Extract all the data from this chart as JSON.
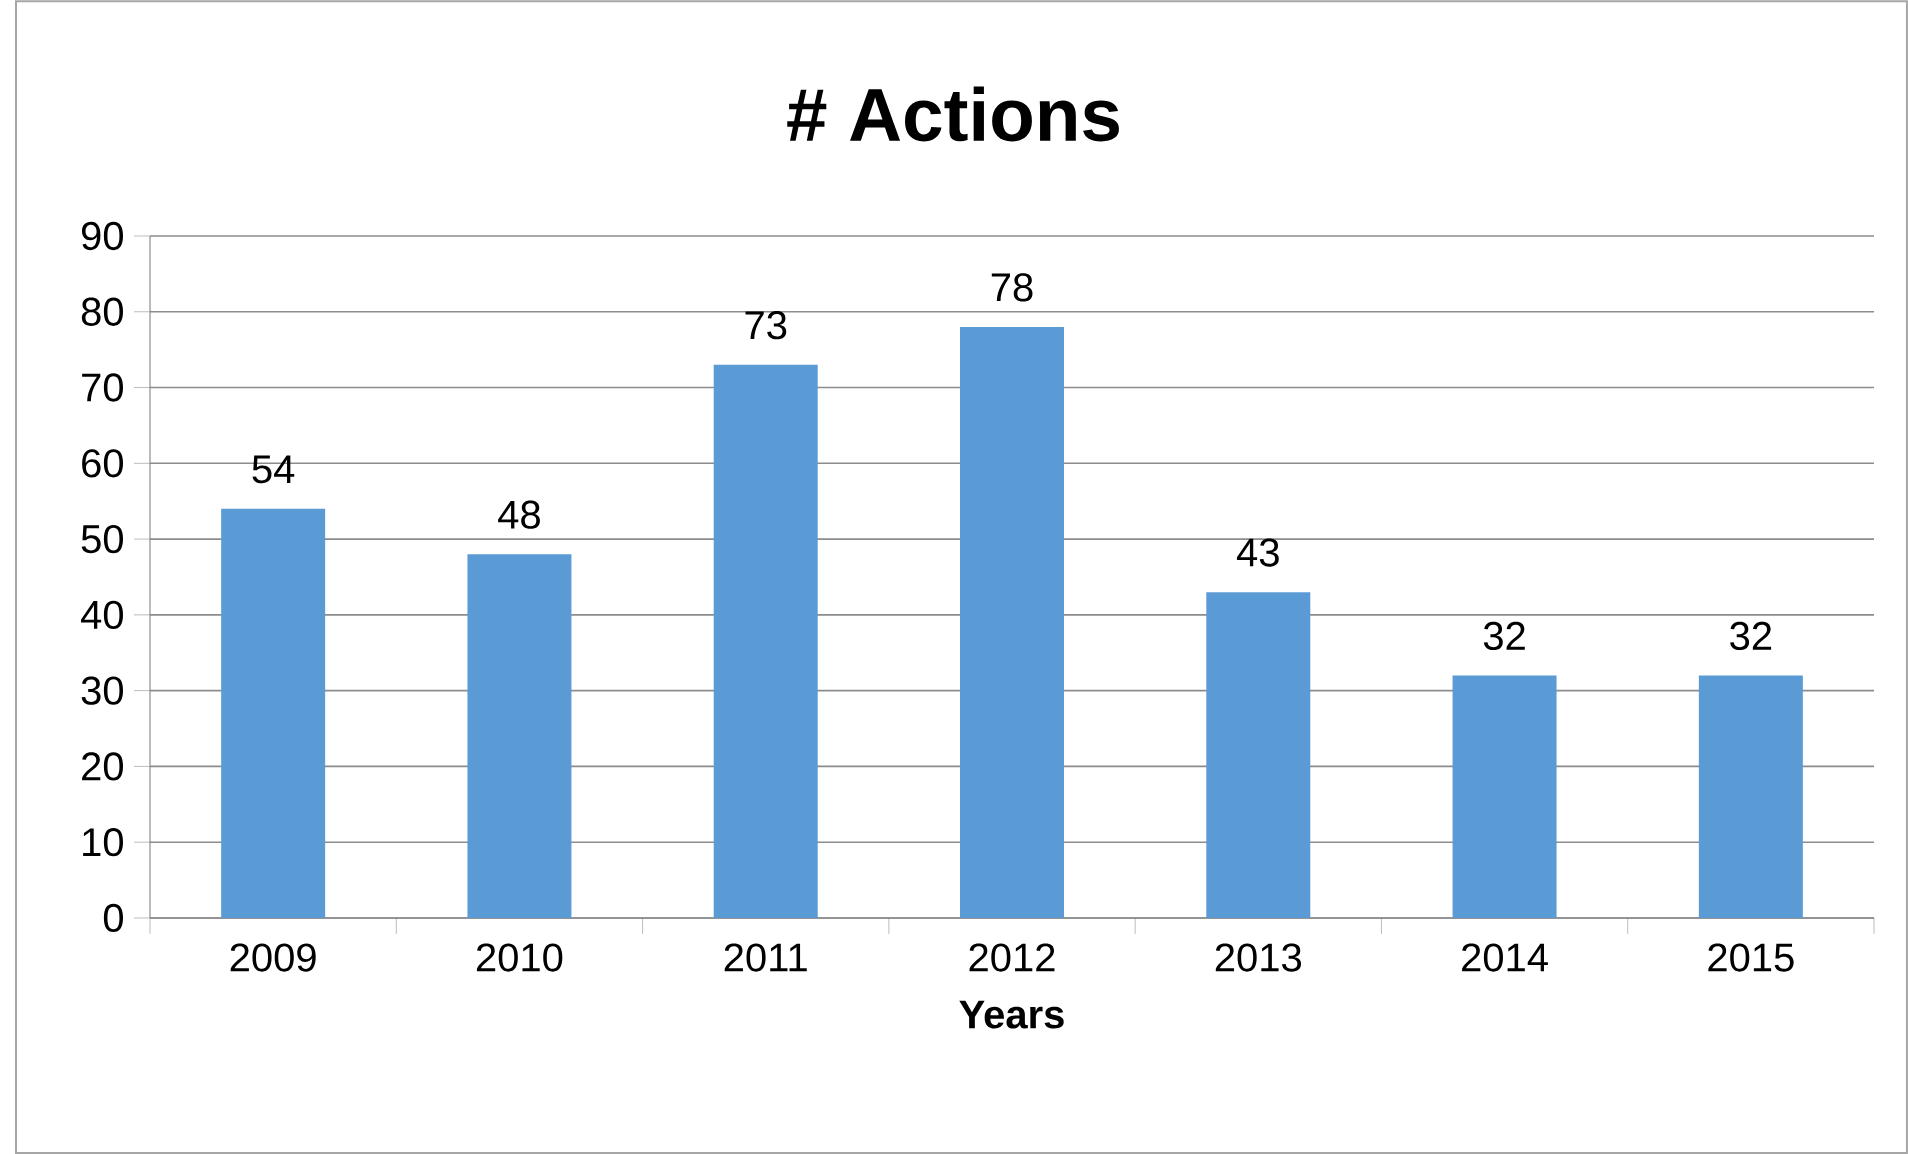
{
  "chart_data": {
    "type": "bar",
    "title": "# Actions",
    "xlabel": "Years",
    "categories": [
      "2009",
      "2010",
      "2011",
      "2012",
      "2013",
      "2014",
      "2015"
    ],
    "values": [
      54,
      48,
      73,
      78,
      43,
      32,
      32
    ],
    "color": "#5b9bd5",
    "ylim": [
      0,
      90
    ],
    "yticks": [
      0,
      10,
      20,
      30,
      40,
      50,
      60,
      70,
      80,
      90
    ],
    "grid": "y",
    "data_labels": true
  }
}
